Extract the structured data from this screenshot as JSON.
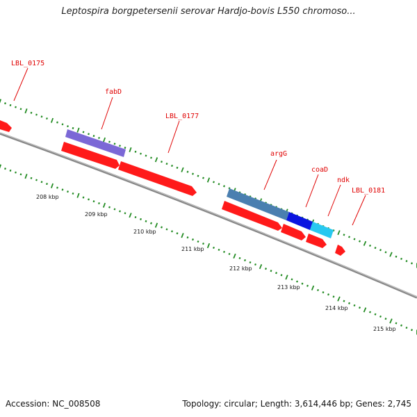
{
  "title": "Leptospira borgpetersenii serovar Hardjo-bovis L550 chromoso...",
  "footer": {
    "accession": "Accession: NC_008508",
    "summary": "Topology: circular; Length: 3,614,446 bp; Genes: 2,745"
  },
  "colors": {
    "backbone": "#888888",
    "tick_green": "#228b22",
    "label_red": "#e00000",
    "gene_red": "#ff1a1a",
    "fabD": "#7b68d6",
    "argG": "#4a7fb0",
    "coaD": "#0a14e0",
    "ndk": "#28c8f0"
  },
  "gene_labels": [
    "LBL_0175",
    "fabD",
    "LBL_0177",
    "argG",
    "coaD",
    "ndk",
    "LBL_0181"
  ],
  "kbp_labels": [
    "208 kbp",
    "209 kbp",
    "210 kbp",
    "211 kbp",
    "212 kbp",
    "213 kbp",
    "214 kbp",
    "215 kbp"
  ]
}
